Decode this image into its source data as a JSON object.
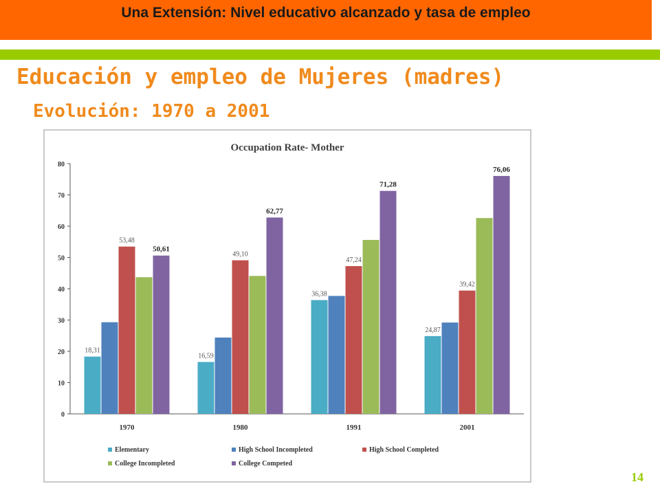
{
  "header": {
    "title": "Una Extensión: Nivel educativo alcanzado y tasa de empleo"
  },
  "slide": {
    "title": "Educación y empleo de Mujeres (madres)",
    "subtitle": "Evolución: 1970 a 2001",
    "page_number": "14"
  },
  "colors": {
    "header": "#ff6600",
    "band": "#99cc00",
    "title": "#f08a1c"
  },
  "chart_data": {
    "type": "bar",
    "title": "Occupation Rate- Mother",
    "xlabel": "",
    "ylabel": "",
    "ylim": [
      0,
      80
    ],
    "yticks": [
      0,
      10,
      20,
      30,
      40,
      50,
      60,
      70,
      80
    ],
    "grid": false,
    "legend_position": "bottom",
    "categories": [
      "1970",
      "1980",
      "1991",
      "2001"
    ],
    "series": [
      {
        "name": "Elementary",
        "color": "#4bacc6",
        "values": [
          18.31,
          16.59,
          36.38,
          24.87
        ],
        "labels": [
          "18,31",
          "16,59",
          "36,38",
          "24,87"
        ]
      },
      {
        "name": "High School Incompleted",
        "color": "#4f81bd",
        "values": [
          29.3,
          24.4,
          37.7,
          29.2
        ],
        "labels": [
          "",
          "",
          "",
          ""
        ]
      },
      {
        "name": "High School Completed",
        "color": "#c0504d",
        "values": [
          53.48,
          49.1,
          47.24,
          39.42
        ],
        "labels": [
          "53,48",
          "49,10",
          "47,24",
          "39,42"
        ]
      },
      {
        "name": "College Incompleted",
        "color": "#9bbb59",
        "values": [
          43.7,
          44.1,
          55.6,
          62.6
        ],
        "labels": [
          "",
          "",
          "",
          ""
        ]
      },
      {
        "name": "College Competed",
        "color": "#8064a2",
        "values": [
          50.61,
          62.77,
          71.28,
          76.06
        ],
        "labels": [
          "50,61",
          "62,77",
          "71,28",
          "76,06"
        ]
      }
    ]
  }
}
